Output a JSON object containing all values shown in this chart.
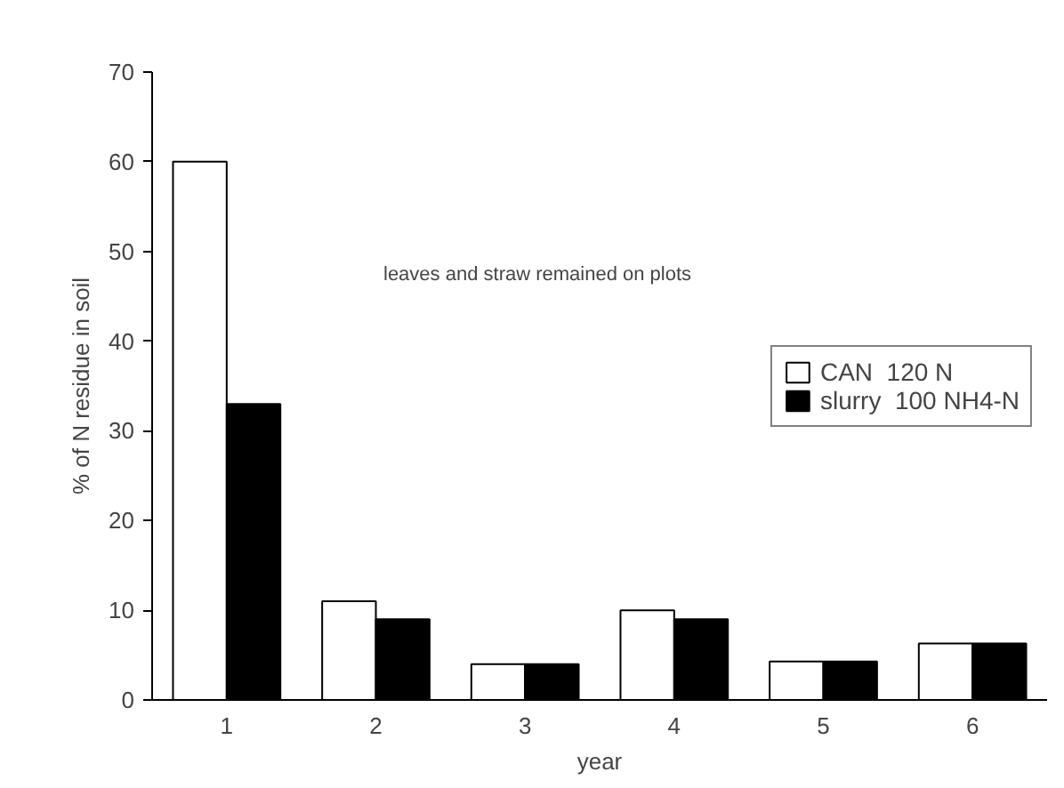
{
  "chart_data": {
    "type": "bar",
    "xlabel": "year",
    "ylabel": "% of N residue in soil",
    "categories": [
      "1",
      "2",
      "3",
      "4",
      "5",
      "6"
    ],
    "series": [
      {
        "name": "CAN  120 N",
        "color": "#ffffff",
        "values": [
          60,
          11,
          4,
          10,
          4.3,
          6.3
        ]
      },
      {
        "name": "slurry  100 NH4-N",
        "color": "#000000",
        "values": [
          33,
          9,
          4,
          9,
          4.3,
          6.3
        ]
      }
    ],
    "ylim": [
      0,
      70
    ],
    "yticks": [
      0,
      10,
      20,
      30,
      40,
      50,
      60,
      70
    ],
    "annotations": [
      "leaves and straw remained on plots"
    ],
    "legend": "right",
    "grid": false
  }
}
